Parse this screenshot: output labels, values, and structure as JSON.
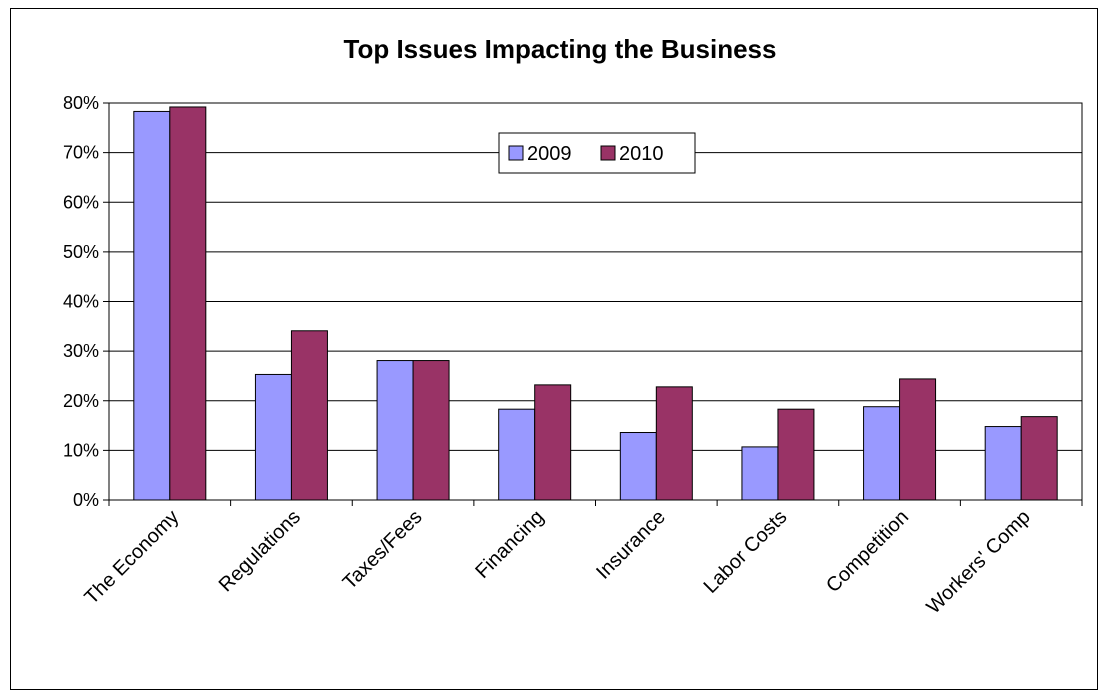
{
  "chart_data": {
    "type": "bar",
    "title": "Top Issues Impacting the Business",
    "categories": [
      "The Economy",
      "Regulations",
      "Taxes/Fees",
      "Financing",
      "Insurance",
      "Labor Costs",
      "Competition",
      "Workers' Comp"
    ],
    "series": [
      {
        "name": "2009",
        "color": "#9999ff",
        "values": [
          0.783,
          0.253,
          0.281,
          0.183,
          0.136,
          0.107,
          0.188,
          0.148
        ]
      },
      {
        "name": "2010",
        "color": "#993366",
        "values": [
          0.792,
          0.341,
          0.281,
          0.232,
          0.228,
          0.183,
          0.244,
          0.168
        ]
      }
    ],
    "ylim": [
      0,
      0.8
    ],
    "yticks": [
      "0%",
      "10%",
      "20%",
      "30%",
      "40%",
      "50%",
      "60%",
      "70%",
      "80%"
    ],
    "grid": true,
    "legend": "top-center",
    "xlabel": "",
    "ylabel": ""
  }
}
